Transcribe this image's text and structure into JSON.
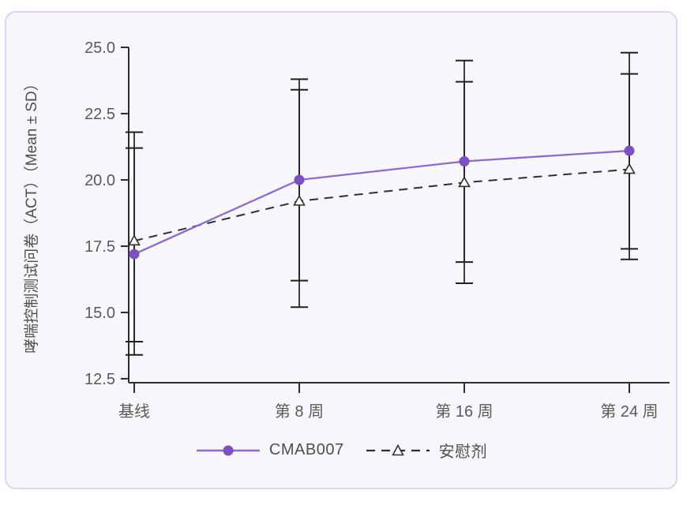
{
  "card": {
    "type": "chart-panel"
  },
  "colors": {
    "page_bg": "#ffffff",
    "card_bg": "#f7f6fa",
    "card_border": "#ded3f4",
    "axis": "#2e2e2e",
    "error_bar": "#1f1f1f",
    "tick_label": "#5a5a5a",
    "axis_title": "#4e4e4e",
    "cmab007_purple": "#8d6ad1",
    "cmab007_marker": "#7b50c5",
    "placebo_black": "#2f2f2f"
  },
  "chart_data": {
    "type": "line",
    "title": "",
    "xlabel": "",
    "ylabel": "哮喘控制测试问卷（ACT）（Mean ± SD）",
    "categories": [
      "基线",
      "第 8 周",
      "第 16 周",
      "第 24 周"
    ],
    "y_ticks": [
      {
        "label": "25.0",
        "value": 25.0
      },
      {
        "label": "22.5",
        "value": 22.5
      },
      {
        "label": "20.0",
        "value": 20.0
      },
      {
        "label": "17.5",
        "value": 17.5
      },
      {
        "label": "15.0",
        "value": 15.0
      },
      {
        "label": "12.5",
        "value": 12.5
      }
    ],
    "ylim": [
      12.35,
      25.0
    ],
    "grid": false,
    "error_bars": true,
    "legend_position": "bottom-center",
    "series": [
      {
        "name": "CMAB007",
        "line_style": "solid",
        "marker": "filled-circle",
        "color": "#8d6ad1",
        "marker_color": "#7b50c5",
        "means": [
          17.2,
          20.0,
          20.7,
          21.1
        ],
        "sd_upper": [
          21.2,
          23.8,
          24.5,
          24.8
        ],
        "sd_lower": [
          13.4,
          16.2,
          16.9,
          17.4
        ]
      },
      {
        "name": "安慰剂",
        "line_style": "dashed",
        "marker": "open-triangle",
        "color": "#2f2f2f",
        "marker_color": "#ffffff",
        "means": [
          17.7,
          19.2,
          19.9,
          20.4
        ],
        "sd_upper": [
          21.8,
          23.4,
          23.7,
          24.0
        ],
        "sd_lower": [
          13.9,
          15.2,
          16.1,
          17.0
        ]
      }
    ]
  }
}
